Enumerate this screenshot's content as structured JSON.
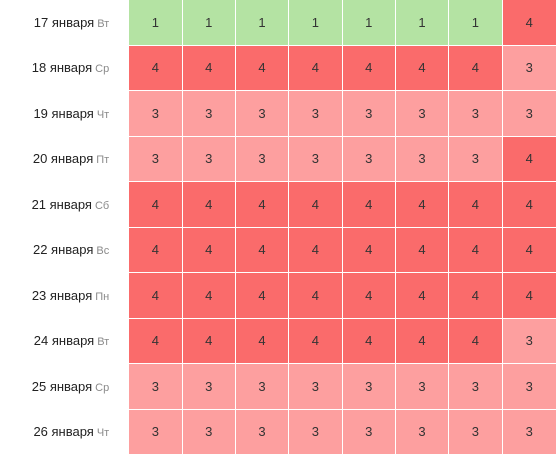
{
  "palette": {
    "1": "#b4e3a3",
    "3": "#fd9f9f",
    "4": "#fa6b6b"
  },
  "rows": [
    {
      "date": "17 января",
      "weekday": "Вт",
      "values": [
        1,
        1,
        1,
        1,
        1,
        1,
        1,
        4
      ]
    },
    {
      "date": "18 января",
      "weekday": "Ср",
      "values": [
        4,
        4,
        4,
        4,
        4,
        4,
        4,
        3
      ]
    },
    {
      "date": "19 января",
      "weekday": "Чт",
      "values": [
        3,
        3,
        3,
        3,
        3,
        3,
        3,
        3
      ]
    },
    {
      "date": "20 января",
      "weekday": "Пт",
      "values": [
        3,
        3,
        3,
        3,
        3,
        3,
        3,
        4
      ]
    },
    {
      "date": "21 января",
      "weekday": "Сб",
      "values": [
        4,
        4,
        4,
        4,
        4,
        4,
        4,
        4
      ]
    },
    {
      "date": "22 января",
      "weekday": "Вс",
      "values": [
        4,
        4,
        4,
        4,
        4,
        4,
        4,
        4
      ]
    },
    {
      "date": "23 января",
      "weekday": "Пн",
      "values": [
        4,
        4,
        4,
        4,
        4,
        4,
        4,
        4
      ]
    },
    {
      "date": "24 января",
      "weekday": "Вт",
      "values": [
        4,
        4,
        4,
        4,
        4,
        4,
        4,
        3
      ]
    },
    {
      "date": "25 января",
      "weekday": "Ср",
      "values": [
        3,
        3,
        3,
        3,
        3,
        3,
        3,
        3
      ]
    },
    {
      "date": "26 января",
      "weekday": "Чт",
      "values": [
        3,
        3,
        3,
        3,
        3,
        3,
        3,
        3
      ]
    }
  ]
}
